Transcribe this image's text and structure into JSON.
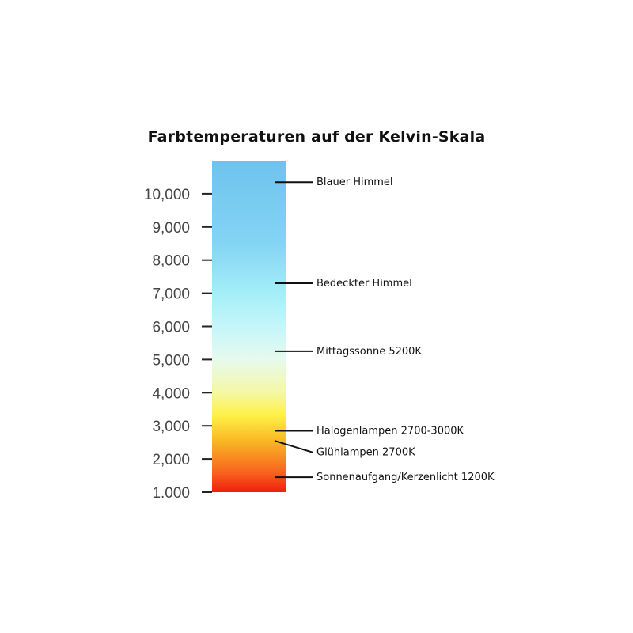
{
  "chart_data": {
    "type": "color-scale",
    "title": "Farbtemperaturen auf der Kelvin-Skala",
    "ylim": [
      1000,
      11000
    ],
    "ticks": [
      {
        "value": 1000,
        "label": "1.000"
      },
      {
        "value": 2000,
        "label": "2,000"
      },
      {
        "value": 3000,
        "label": "3,000"
      },
      {
        "value": 4000,
        "label": "4,000"
      },
      {
        "value": 5000,
        "label": "5,000"
      },
      {
        "value": 6000,
        "label": "6,000"
      },
      {
        "value": 7000,
        "label": "7,000"
      },
      {
        "value": 8000,
        "label": "8,000"
      },
      {
        "value": 9000,
        "label": "9,000"
      },
      {
        "value": 10000,
        "label": "10,000"
      }
    ],
    "gradient": [
      {
        "value": 1000,
        "color": "#f01e0c"
      },
      {
        "value": 1600,
        "color": "#f8641e"
      },
      {
        "value": 2500,
        "color": "#f8b424"
      },
      {
        "value": 3300,
        "color": "#fff044"
      },
      {
        "value": 4000,
        "color": "#f4f8a4"
      },
      {
        "value": 5000,
        "color": "#e6faee"
      },
      {
        "value": 6000,
        "color": "#c4f6fa"
      },
      {
        "value": 7000,
        "color": "#a4eef8"
      },
      {
        "value": 8500,
        "color": "#84d4f4"
      },
      {
        "value": 11000,
        "color": "#6ec2ee"
      }
    ],
    "annotations": [
      {
        "label": "Blauer Himmel",
        "value": 10350
      },
      {
        "label": "Bedeckter Himmel",
        "value": 7300
      },
      {
        "label": "Mittagssonne 5200K",
        "value": 5250
      },
      {
        "label": "Halogenlampen 2700-3000K",
        "value": 2850
      },
      {
        "label": "Glühlampen 2700K",
        "value": 2550,
        "label_value": 2200
      },
      {
        "label": "Sonnenaufgang/Kerzenlicht 1200K",
        "value": 1450
      }
    ]
  }
}
